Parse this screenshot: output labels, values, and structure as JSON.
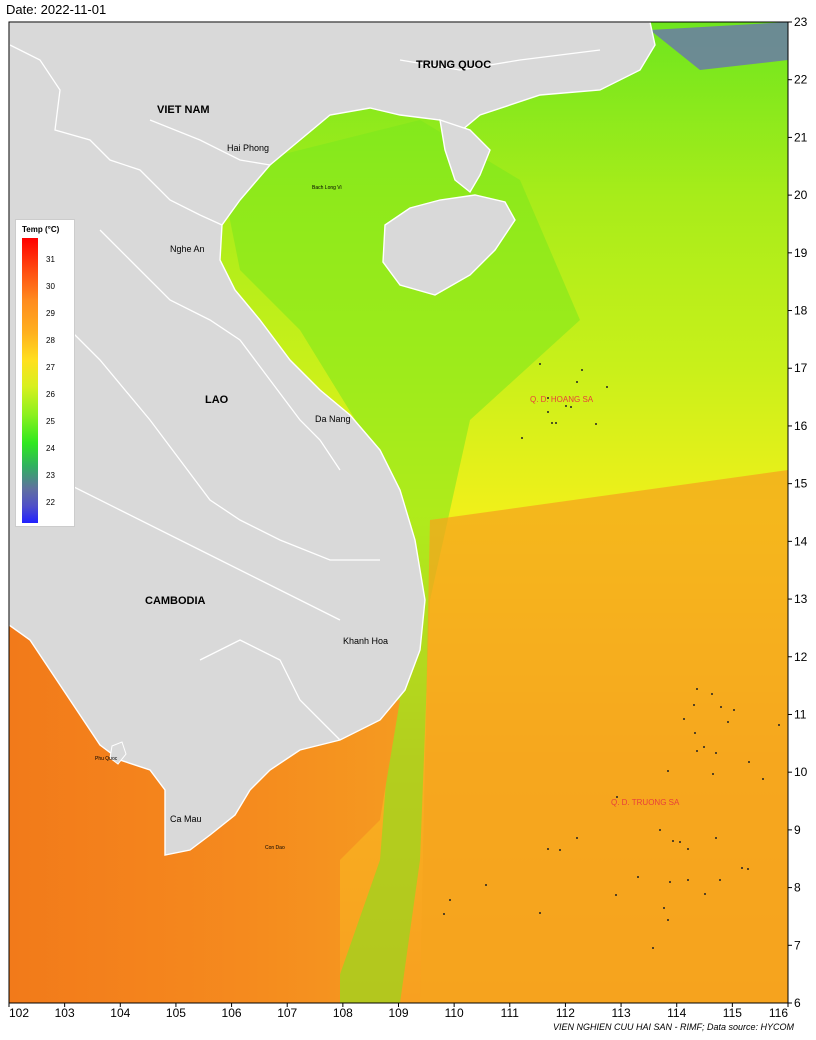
{
  "header": {
    "date": "Date: 2022-11-01"
  },
  "footer": {
    "credit": "VIEN NGHIEN CUU HAI SAN - RIMF; Data source: HYCOM"
  },
  "legend": {
    "title": "Temp (°C)",
    "ticks": [
      "31",
      "30",
      "29",
      "28",
      "27",
      "26",
      "25",
      "24",
      "23",
      "22"
    ]
  },
  "axes": {
    "x_ticks": [
      "102",
      "103",
      "104",
      "105",
      "106",
      "107",
      "108",
      "109",
      "110",
      "111",
      "112",
      "113",
      "114",
      "115",
      "116"
    ],
    "y_ticks": [
      "23",
      "22",
      "21",
      "20",
      "19",
      "18",
      "17",
      "16",
      "15",
      "14",
      "13",
      "12",
      "11",
      "10",
      "9",
      "8",
      "7",
      "6"
    ]
  },
  "labels": {
    "countries": {
      "china": "TRUNG QUOC",
      "vietnam": "VIET NAM",
      "lao": "LAO",
      "cambodia": "CAMBODIA"
    },
    "cities": {
      "hai_phong": "Hai Phong",
      "nghe_an": "Nghe An",
      "da_nang": "Da Nang",
      "khanh_hoa": "Khanh Hoa",
      "ca_mau": "Ca Mau"
    },
    "islands": {
      "bach_long_vi": "Bach Long Vi",
      "phu_quoc": "Phu Quoc",
      "con_dao": "Con Dao"
    },
    "archipelagos": {
      "hoang_sa": "Q. D. HOANG SA",
      "truong_sa": "Q. D. TRUONG SA"
    }
  },
  "colors": {
    "land": "#d9d9d9",
    "border": "#ffffff",
    "label_red": "#e8403a"
  }
}
